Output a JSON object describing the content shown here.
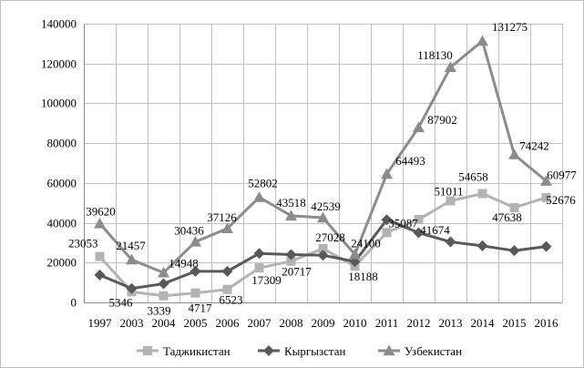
{
  "chart_data": {
    "type": "line",
    "title": "",
    "xlabel": "",
    "ylabel": "",
    "ylim": [
      0,
      140000
    ],
    "ytick_step": 20000,
    "yticks": [
      "0",
      "20000",
      "40000",
      "60000",
      "80000",
      "100000",
      "120000",
      "140000"
    ],
    "grid": true,
    "legend_position": "bottom",
    "categories": [
      "1997",
      "2003",
      "2004",
      "2005",
      "2006",
      "2007",
      "2008",
      "2009",
      "2010",
      "2011",
      "2012",
      "2013",
      "2014",
      "2015",
      "2016"
    ],
    "series": [
      {
        "name": "Таджикистан",
        "marker": "square",
        "color": "#b3b3b3",
        "values": [
          23053,
          5346,
          3339,
          4717,
          6523,
          17309,
          20717,
          27028,
          18188,
          35087,
          41674,
          51011,
          54658,
          47638,
          52676
        ],
        "labels": [
          "23053",
          "5346",
          "3339",
          "4717",
          "6523",
          "17309",
          "20717",
          "27028",
          "18188",
          "35087",
          "41674",
          "51011",
          "54658",
          "47638",
          "52676"
        ]
      },
      {
        "name": "Кыргызстан",
        "marker": "diamond",
        "color": "#595959",
        "values": [
          13800,
          7000,
          9400,
          15600,
          15600,
          24600,
          24000,
          23700,
          20500,
          41500,
          35000,
          30400,
          28400,
          26000,
          28100
        ],
        "labels": null
      },
      {
        "name": "Узбекистан",
        "marker": "triangle",
        "color": "#8c8c8c",
        "values": [
          39620,
          21457,
          14948,
          30436,
          37126,
          52802,
          43518,
          42539,
          24100,
          64493,
          87902,
          118130,
          131275,
          74242,
          60977
        ],
        "labels": [
          "39620",
          "21457",
          "14948",
          "30436",
          "37126",
          "52802",
          "43518",
          "42539",
          "24100",
          "64493",
          "87902",
          "118130",
          "131275",
          "74242",
          "60977"
        ]
      }
    ]
  }
}
